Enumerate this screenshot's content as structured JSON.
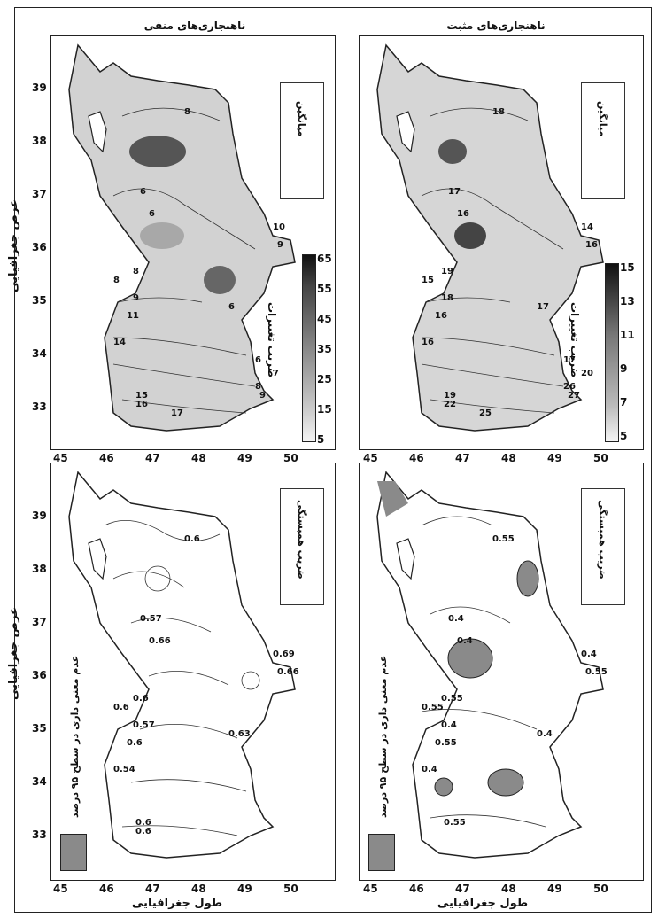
{
  "panels": {
    "top_left": {
      "title": "ناهنجاری‌های منفی",
      "legend": "میانگین",
      "colorbar_title": "ضریب تغییرات",
      "colorbar_ticks": [
        "65",
        "55",
        "45",
        "35",
        "25",
        "15",
        "5"
      ]
    },
    "top_right": {
      "title": "ناهنجاری‌های مثبت",
      "legend": "میانگین",
      "colorbar_title": "ضریب تغییرات",
      "colorbar_ticks": [
        "15",
        "13",
        "11",
        "9",
        "7",
        "5"
      ]
    },
    "bottom_left": {
      "legend": "ضریب همبستگی",
      "significance": "عدم معنی داری در سطح ۹۵ درصد"
    },
    "bottom_right": {
      "legend": "ضریب همبستگی",
      "significance": "عدم معنی داری در سطح ۹۵ درصد"
    }
  },
  "axes": {
    "y_label": "عرض جغرافیایی",
    "x_label": "طول جغرافیایی",
    "x_ticks": [
      "45",
      "46",
      "47",
      "48",
      "49",
      "50"
    ],
    "y_ticks": [
      "39",
      "38",
      "37",
      "36",
      "35",
      "34",
      "33"
    ]
  },
  "contour_labels": {
    "top_left": [
      "8",
      "6",
      "6",
      "8",
      "10",
      "9",
      "6",
      "8",
      "9",
      "11",
      "14",
      "15",
      "16",
      "17",
      "8",
      "9",
      "6",
      "7"
    ],
    "top_right": [
      "18",
      "17",
      "16",
      "15",
      "14",
      "16",
      "17",
      "19",
      "18",
      "16",
      "16",
      "19",
      "22",
      "25",
      "26",
      "27",
      "17",
      "20"
    ],
    "bottom_left": [
      "0.6",
      "0.57",
      "0.66",
      "0.6",
      "0.69",
      "0.66",
      "0.63",
      "0.6",
      "0.57",
      "0.6",
      "0.54",
      "0.6",
      "0.6"
    ],
    "bottom_right": [
      "0.55",
      "0.4",
      "0.4",
      "0.55",
      "0.4",
      "0.55",
      "0.4",
      "0.55",
      "0.4",
      "0.55",
      "0.4",
      "0.55"
    ]
  },
  "colors": {
    "fill_light": "#d2d2d2",
    "fill_mid": "#a8a8a8",
    "fill_dark": "#555555",
    "significance_swatch": "#8a8a8a"
  }
}
